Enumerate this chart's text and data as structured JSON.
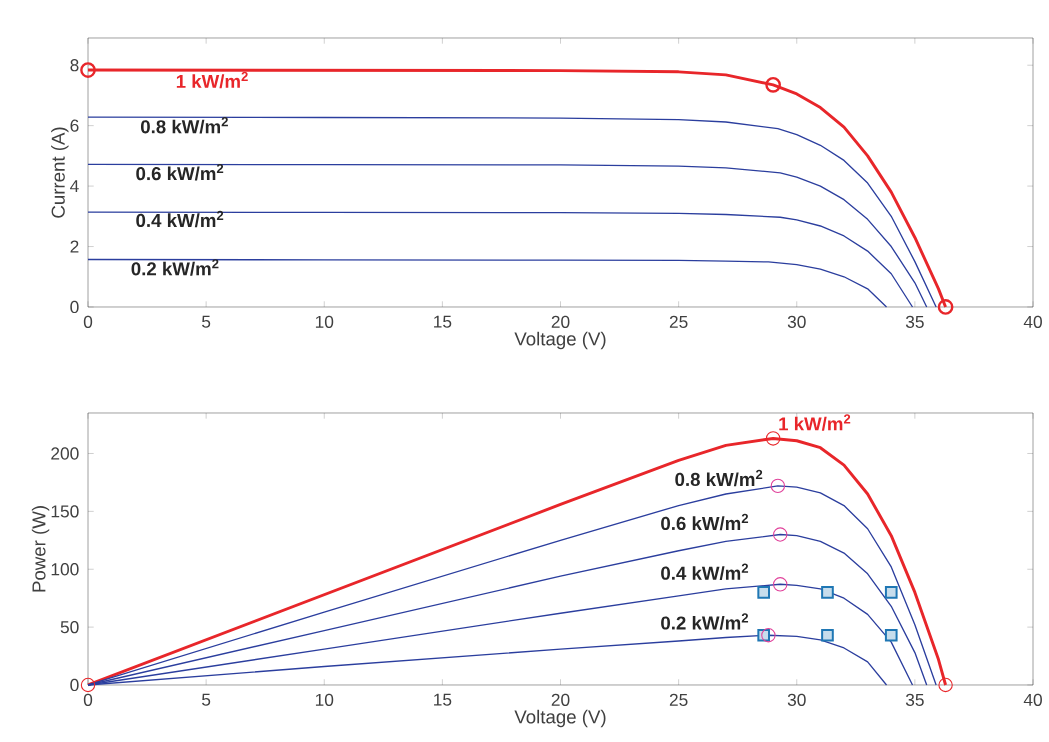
{
  "chart_data": [
    {
      "type": "line",
      "xlabel": "Voltage (V)",
      "ylabel": "Current (A)",
      "xlim": [
        0,
        40
      ],
      "ylim": [
        0,
        8.9
      ],
      "xticks": [
        0,
        5,
        10,
        15,
        20,
        25,
        30,
        35,
        40
      ],
      "yticks": [
        0,
        2,
        4,
        6,
        8
      ],
      "grid": false,
      "marker": "none",
      "line_style": "solid",
      "series": [
        {
          "name": "1 kW/m$^{2}$",
          "color": "#e8262a",
          "x": [
            0,
            10,
            20,
            25,
            27,
            29,
            30,
            31,
            32,
            33,
            34,
            35,
            36,
            36.3
          ],
          "values": [
            7.84,
            7.83,
            7.82,
            7.78,
            7.68,
            7.35,
            7.05,
            6.6,
            5.95,
            5.0,
            3.8,
            2.3,
            0.6,
            0
          ]
        },
        {
          "name": "0.8 kW/m$^{2}$",
          "color": "#2b3e9e",
          "x": [
            0,
            10,
            20,
            25,
            27,
            29.2,
            30,
            31,
            32,
            33,
            34,
            35,
            35.9
          ],
          "values": [
            6.28,
            6.27,
            6.25,
            6.2,
            6.12,
            5.9,
            5.7,
            5.35,
            4.85,
            4.1,
            3.0,
            1.5,
            0
          ]
        },
        {
          "name": "0.6 kW/m$^{2}$",
          "color": "#2b3e9e",
          "x": [
            0,
            10,
            20,
            25,
            27,
            29.3,
            30,
            31,
            32,
            33,
            34,
            35,
            35.5
          ],
          "values": [
            4.72,
            4.71,
            4.7,
            4.66,
            4.6,
            4.44,
            4.3,
            4.0,
            3.55,
            2.9,
            2.0,
            0.8,
            0
          ]
        },
        {
          "name": "0.4 kW/m$^{2}$",
          "color": "#2b3e9e",
          "x": [
            0,
            10,
            20,
            25,
            27,
            29.3,
            30,
            31,
            32,
            33,
            34,
            34.9
          ],
          "values": [
            3.14,
            3.13,
            3.12,
            3.1,
            3.06,
            2.97,
            2.88,
            2.68,
            2.35,
            1.85,
            1.1,
            0
          ]
        },
        {
          "name": "0.2 kW/m$^{2}$",
          "color": "#2b3e9e",
          "x": [
            0,
            10,
            20,
            25,
            27,
            28.8,
            30,
            31,
            32,
            33,
            33.8
          ],
          "values": [
            1.57,
            1.56,
            1.55,
            1.54,
            1.52,
            1.49,
            1.4,
            1.25,
            1.0,
            0.6,
            0
          ]
        },
        {
          "type": "scatter",
          "marker": "circle",
          "color": "#e8262a",
          "x": [
            0,
            29,
            36.3
          ],
          "values": [
            7.84,
            7.35,
            0
          ]
        }
      ]
    },
    {
      "type": "line",
      "xlabel": "Voltage (V)",
      "ylabel": "Power (W)",
      "xlim": [
        0,
        40
      ],
      "ylim": [
        0,
        235
      ],
      "xticks": [
        0,
        5,
        10,
        15,
        20,
        25,
        30,
        35,
        40
      ],
      "yticks": [
        0,
        50,
        100,
        150,
        200
      ],
      "grid": false,
      "marker": "none",
      "line_style": "solid",
      "series": [
        {
          "name": "1 kW/m$^{2}$",
          "color": "#e8262a",
          "x": [
            0,
            10,
            20,
            25,
            27,
            29,
            30,
            31,
            32,
            33,
            34,
            35,
            36,
            36.3
          ],
          "values": [
            0,
            78,
            156,
            194,
            207,
            213,
            211,
            205,
            190,
            165,
            129,
            80,
            22,
            0
          ]
        },
        {
          "name": "0.8 kW/m$^{2}$",
          "color": "#2b3e9e",
          "x": [
            0,
            10,
            20,
            25,
            27,
            29.2,
            30,
            31,
            32,
            33,
            34,
            35,
            35.9
          ],
          "values": [
            0,
            63,
            125,
            155,
            165,
            172,
            171,
            166,
            155,
            135,
            102,
            52,
            0
          ]
        },
        {
          "name": "0.6 kW/m$^{2}$",
          "color": "#2b3e9e",
          "x": [
            0,
            10,
            20,
            25,
            27,
            29.3,
            30,
            31,
            32,
            33,
            34,
            35,
            35.5
          ],
          "values": [
            0,
            47,
            94,
            116,
            124,
            130,
            129,
            124,
            114,
            96,
            68,
            28,
            0
          ]
        },
        {
          "name": "0.4 kW/m$^{2}$",
          "color": "#2b3e9e",
          "x": [
            0,
            10,
            20,
            25,
            27,
            29.3,
            30,
            31,
            32,
            33,
            34,
            34.9
          ],
          "values": [
            0,
            31,
            62,
            77,
            83,
            87,
            86,
            83,
            75,
            61,
            37,
            0
          ]
        },
        {
          "name": "0.2 kW/m$^{2}$",
          "color": "#2b3e9e",
          "x": [
            0,
            10,
            20,
            25,
            27,
            28.8,
            30,
            31,
            32,
            33,
            33.8
          ],
          "values": [
            0,
            16,
            31,
            38,
            41,
            43,
            42,
            39,
            32,
            20,
            0
          ]
        },
        {
          "type": "scatter",
          "marker": "circle",
          "color": "#e8262a",
          "x": [
            0,
            29,
            36.3
          ],
          "values": [
            0,
            213,
            0
          ]
        },
        {
          "type": "scatter",
          "marker": "square",
          "color": "#1f77b4",
          "x": [
            28.6,
            31.3,
            34,
            28.6,
            31.3,
            34
          ],
          "values": [
            80,
            80,
            80,
            43,
            43,
            43
          ]
        },
        {
          "type": "scatter",
          "marker": "circle",
          "color": "#e0409a",
          "x": [
            29.2,
            29.3,
            29.3,
            28.8
          ],
          "values": [
            172,
            130,
            87,
            43
          ]
        }
      ]
    }
  ]
}
